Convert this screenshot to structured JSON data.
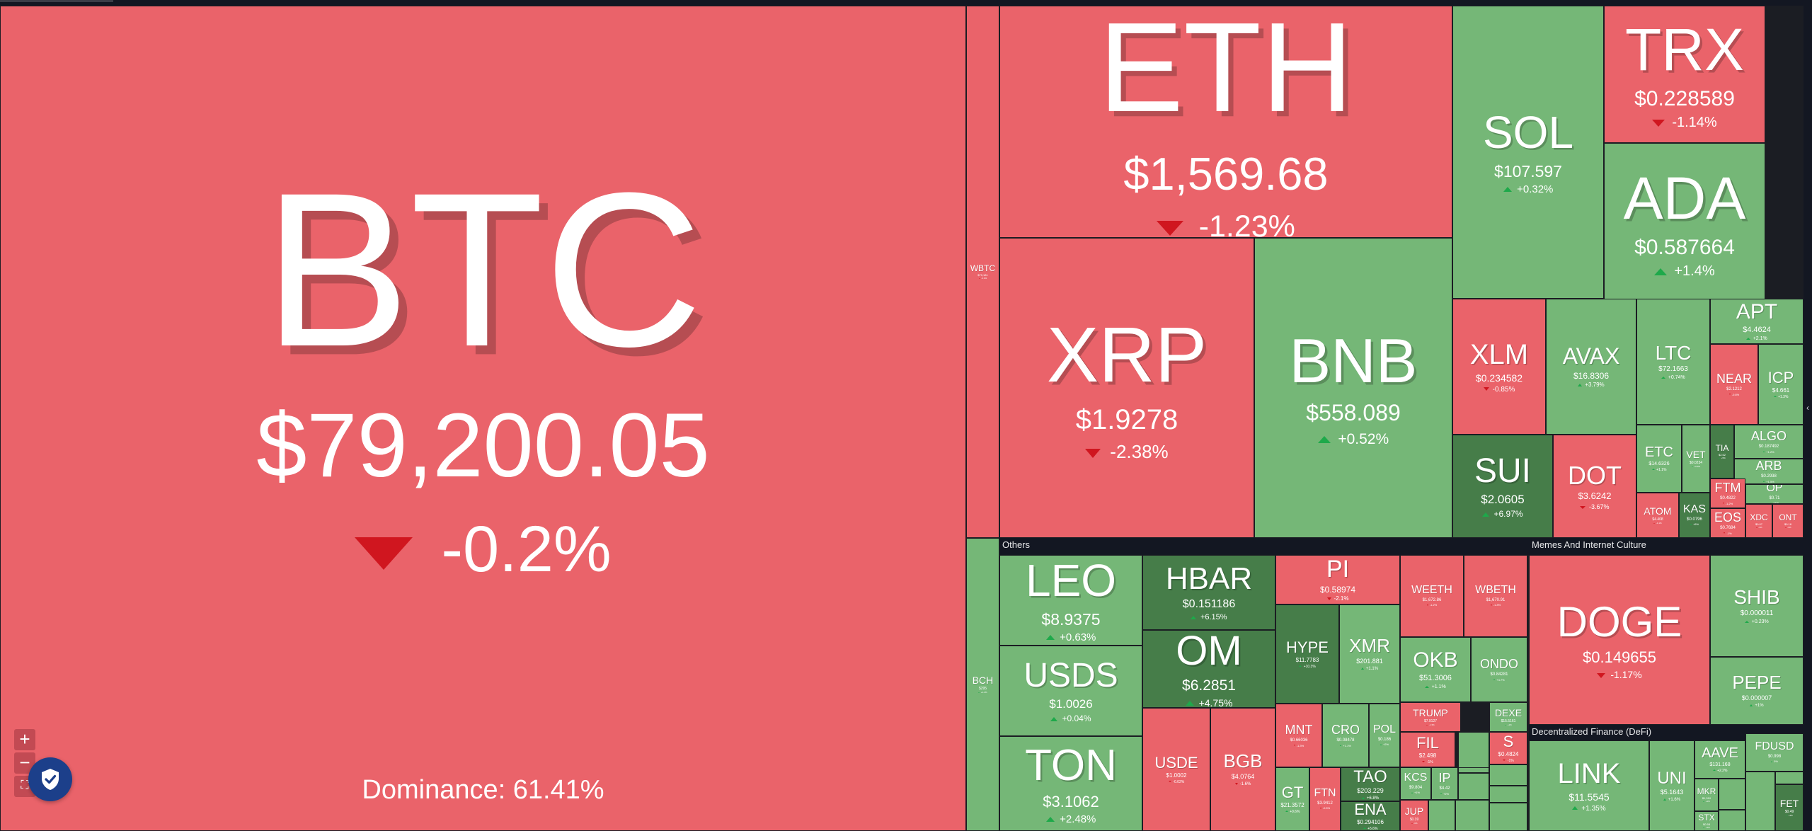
{
  "colors": {
    "down": "#ea636a",
    "up": "#75b777",
    "strong_up": "#467d49",
    "down_arrow": "#d0161f",
    "up_arrow": "#1ea94a",
    "background": "#1b1d23"
  },
  "sections": {
    "others": "Others",
    "memes": "Memes And Internet Culture",
    "defi": "Decentralized Finance (DeFi)"
  },
  "dominance": "Dominance: 61.41%",
  "tiles": [
    {
      "id": "btc",
      "symbol": "BTC",
      "price": "$79,200.05",
      "change": "-0.2%",
      "dir": "down"
    },
    {
      "id": "wbtc",
      "symbol": "WBTC",
      "price": "$79,181",
      "change": "-0.2%",
      "dir": "down"
    },
    {
      "id": "bch",
      "symbol": "BCH",
      "price": "$295",
      "change": "+1.2%",
      "dir": "up"
    },
    {
      "id": "eth",
      "symbol": "ETH",
      "price": "$1,569.68",
      "change": "-1.23%",
      "dir": "down"
    },
    {
      "id": "sol",
      "symbol": "SOL",
      "price": "$107.597",
      "change": "+0.32%",
      "dir": "up"
    },
    {
      "id": "trx",
      "symbol": "TRX",
      "price": "$0.228589",
      "change": "-1.14%",
      "dir": "down"
    },
    {
      "id": "ada",
      "symbol": "ADA",
      "price": "$0.587664",
      "change": "+1.4%",
      "dir": "up"
    },
    {
      "id": "xrp",
      "symbol": "XRP",
      "price": "$1.9278",
      "change": "-2.38%",
      "dir": "down"
    },
    {
      "id": "bnb",
      "symbol": "BNB",
      "price": "$558.089",
      "change": "+0.52%",
      "dir": "up"
    },
    {
      "id": "xlm",
      "symbol": "XLM",
      "price": "$0.234582",
      "change": "-0.85%",
      "dir": "down"
    },
    {
      "id": "avax",
      "symbol": "AVAX",
      "price": "$16.8306",
      "change": "+3.79%",
      "dir": "up"
    },
    {
      "id": "ltc",
      "symbol": "LTC",
      "price": "$72.1663",
      "change": "+0.74%",
      "dir": "up"
    },
    {
      "id": "apt",
      "symbol": "APT",
      "price": "$4.4624",
      "change": "+2.1%",
      "dir": "up"
    },
    {
      "id": "near",
      "symbol": "NEAR",
      "price": "$2.1212",
      "change": "-0.8%",
      "dir": "down"
    },
    {
      "id": "icp",
      "symbol": "ICP",
      "price": "$4.661",
      "change": "+1.3%",
      "dir": "up"
    },
    {
      "id": "sui",
      "symbol": "SUI",
      "price": "$2.0605",
      "change": "+6.97%",
      "dir": "strong"
    },
    {
      "id": "dot",
      "symbol": "DOT",
      "price": "$3.6242",
      "change": "-3.67%",
      "dir": "down"
    },
    {
      "id": "etc",
      "symbol": "ETC",
      "price": "$14.6326",
      "change": "+1.1%",
      "dir": "up"
    },
    {
      "id": "vet",
      "symbol": "VET",
      "price": "$0.0234",
      "change": "+0.9%",
      "dir": "up"
    },
    {
      "id": "tia",
      "symbol": "TIA",
      "price": "$2.62",
      "change": "+5%",
      "dir": "strong"
    },
    {
      "id": "algo",
      "symbol": "ALGO",
      "price": "$0.187492",
      "change": "+1.2%",
      "dir": "up"
    },
    {
      "id": "arb",
      "symbol": "ARB",
      "price": "$0.2938",
      "change": "+1.5%",
      "dir": "up"
    },
    {
      "id": "ftm",
      "symbol": "FTM",
      "price": "$0.4822",
      "change": "-1.2%",
      "dir": "down"
    },
    {
      "id": "op",
      "symbol": "OP",
      "price": "$0.71",
      "change": "+1%",
      "dir": "up"
    },
    {
      "id": "atom",
      "symbol": "ATOM",
      "price": "$4.408",
      "change": "-1.1%",
      "dir": "down"
    },
    {
      "id": "kas",
      "symbol": "KAS",
      "price": "$0.0796",
      "change": "+6%",
      "dir": "strong"
    },
    {
      "id": "eos",
      "symbol": "EOS",
      "price": "$0.7684",
      "change": "-1%",
      "dir": "down"
    },
    {
      "id": "xdc",
      "symbol": "XDC",
      "price": "$0.07",
      "change": "-1%",
      "dir": "down"
    },
    {
      "id": "ont",
      "symbol": "ONT",
      "price": "$0.18",
      "change": "-1%",
      "dir": "down"
    },
    {
      "id": "leo",
      "symbol": "LEO",
      "price": "$8.9375",
      "change": "+0.63%",
      "dir": "up"
    },
    {
      "id": "usds",
      "symbol": "USDS",
      "price": "$1.0026",
      "change": "+0.04%",
      "dir": "up"
    },
    {
      "id": "ton",
      "symbol": "TON",
      "price": "$3.1062",
      "change": "+2.48%",
      "dir": "up"
    },
    {
      "id": "hbar",
      "symbol": "HBAR",
      "price": "$0.151186",
      "change": "+6.15%",
      "dir": "strong"
    },
    {
      "id": "om",
      "symbol": "OM",
      "price": "$6.2851",
      "change": "+4.75%",
      "dir": "strong"
    },
    {
      "id": "pi",
      "symbol": "PI",
      "price": "$0.58974",
      "change": "-2.1%",
      "dir": "down"
    },
    {
      "id": "weeth",
      "symbol": "WEETH",
      "price": "$1,672.86",
      "change": "-1.2%",
      "dir": "down"
    },
    {
      "id": "wbeth",
      "symbol": "WBETH",
      "price": "$1,670.91",
      "change": "-1.3%",
      "dir": "down"
    },
    {
      "id": "hype",
      "symbol": "HYPE",
      "price": "$11.7783",
      "change": "+10.3%",
      "dir": "strong"
    },
    {
      "id": "xmr",
      "symbol": "XMR",
      "price": "$201.881",
      "change": "+1.1%",
      "dir": "up"
    },
    {
      "id": "okb",
      "symbol": "OKB",
      "price": "$51.3006",
      "change": "+1.1%",
      "dir": "up"
    },
    {
      "id": "ondo",
      "symbol": "ONDO",
      "price": "$0.84281",
      "change": "+4.7%",
      "dir": "up"
    },
    {
      "id": "usde",
      "symbol": "USDE",
      "price": "$1.0002",
      "change": "-0.02%",
      "dir": "down"
    },
    {
      "id": "bgb",
      "symbol": "BGB",
      "price": "$4.0764",
      "change": "-1.6%",
      "dir": "down"
    },
    {
      "id": "mnt",
      "symbol": "MNT",
      "price": "$0.66036",
      "change": "-1.3%",
      "dir": "down"
    },
    {
      "id": "cro",
      "symbol": "CRO",
      "price": "$0.08478",
      "change": "+1.1%",
      "dir": "up"
    },
    {
      "id": "pol",
      "symbol": "POL",
      "price": "$0.186",
      "change": "+2%",
      "dir": "up"
    },
    {
      "id": "trump",
      "symbol": "TRUMP",
      "price": "$7.9127",
      "change": "-1.3%",
      "dir": "down"
    },
    {
      "id": "dexe",
      "symbol": "DEXE",
      "price": "$15.5161",
      "change": "+1%",
      "dir": "up"
    },
    {
      "id": "fil",
      "symbol": "FIL",
      "price": "$2.498",
      "change": "-1%",
      "dir": "down"
    },
    {
      "id": "s",
      "symbol": "S",
      "price": "$0.4824",
      "change": "-1%",
      "dir": "down"
    },
    {
      "id": "gt",
      "symbol": "GT",
      "price": "$21.3572",
      "change": "+0.6%",
      "dir": "up"
    },
    {
      "id": "ftn",
      "symbol": "FTN",
      "price": "$3.9412",
      "change": "-0.5%",
      "dir": "down"
    },
    {
      "id": "tao",
      "symbol": "TAO",
      "price": "$203.229",
      "change": "+6.8%",
      "dir": "strong"
    },
    {
      "id": "ena",
      "symbol": "ENA",
      "price": "$0.294106",
      "change": "+5.6%",
      "dir": "strong"
    },
    {
      "id": "kcs",
      "symbol": "KCS",
      "price": "$9.804",
      "change": "+1%",
      "dir": "up"
    },
    {
      "id": "ip",
      "symbol": "IP",
      "price": "$4.42",
      "change": "+2%",
      "dir": "up"
    },
    {
      "id": "jup",
      "symbol": "JUP",
      "price": "$0.39",
      "change": "-1%",
      "dir": "down"
    },
    {
      "id": "doge",
      "symbol": "DOGE",
      "price": "$0.149655",
      "change": "-1.17%",
      "dir": "down"
    },
    {
      "id": "shib",
      "symbol": "SHIB",
      "price": "$0.000011",
      "change": "+0.23%",
      "dir": "up"
    },
    {
      "id": "pepe",
      "symbol": "PEPE",
      "price": "$0.000007",
      "change": "+1%",
      "dir": "up"
    },
    {
      "id": "link",
      "symbol": "LINK",
      "price": "$11.5545",
      "change": "+1.35%",
      "dir": "up"
    },
    {
      "id": "uni",
      "symbol": "UNI",
      "price": "$5.1643",
      "change": "+1.6%",
      "dir": "up"
    },
    {
      "id": "aave",
      "symbol": "AAVE",
      "price": "$131.168",
      "change": "+2.2%",
      "dir": "up"
    },
    {
      "id": "fdusd",
      "symbol": "FDUSD",
      "price": "$0.998",
      "change": "0%",
      "dir": "up"
    },
    {
      "id": "mkr",
      "symbol": "MKR",
      "price": "$1,310",
      "change": "+1%",
      "dir": "up"
    },
    {
      "id": "stx",
      "symbol": "STX",
      "price": "$0.58",
      "change": "+1%",
      "dir": "up"
    },
    {
      "id": "fet",
      "symbol": "FET",
      "price": "$0.49",
      "change": "+4%",
      "dir": "strong"
    }
  ]
}
